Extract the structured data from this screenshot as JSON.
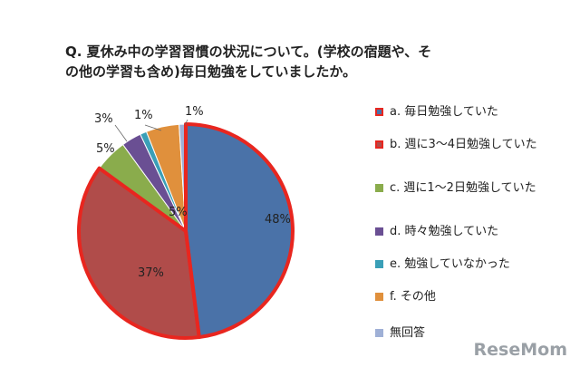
{
  "chart_data": {
    "type": "pie",
    "title": "Q. 夏休み中の学習習慣の状況について。(学校の宿題や、その他の学習も含め)毎日勉強をしていましたか。",
    "slices": [
      {
        "label": "a. 毎日勉強していた",
        "value": 48,
        "value_label": "48%",
        "color": "#4a72a8",
        "highlighted": true
      },
      {
        "label": "b. 週に3～4日勉強していた",
        "value": 37,
        "value_label": "37%",
        "color": "#b04c4a",
        "highlighted": true
      },
      {
        "label": "c. 週に1～2日勉強していた",
        "value": 5,
        "value_label": "5%",
        "color": "#8aac4c",
        "highlighted": false
      },
      {
        "label": "d. 時々勉強していた",
        "value": 3,
        "value_label": "3%",
        "color": "#6a4f93",
        "highlighted": false
      },
      {
        "label": "e. 勉強していなかった",
        "value": 1,
        "value_label": "1%",
        "color": "#3a9fb7",
        "highlighted": false
      },
      {
        "label": "f. その他",
        "value": 5,
        "value_label": "5%",
        "color": "#e0903c",
        "highlighted": false
      },
      {
        "label": "無回答",
        "value": 1,
        "value_label": "1%",
        "color": "#9fb0d6",
        "highlighted": false
      }
    ],
    "legend_position": "right",
    "highlight_color": "#e8261f"
  },
  "watermark": "ReseMom"
}
